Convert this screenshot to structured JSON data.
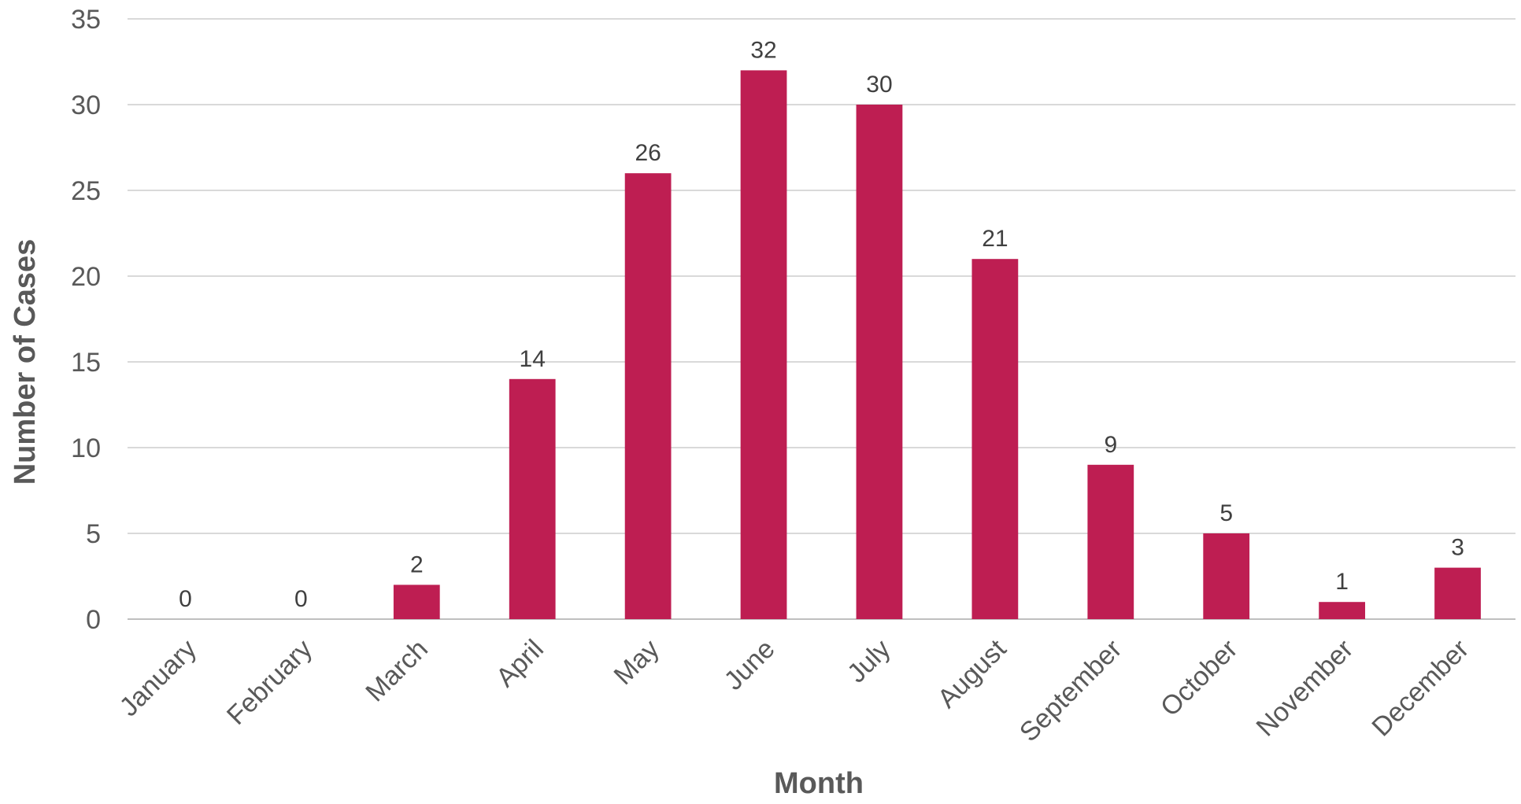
{
  "chart_data": {
    "type": "bar",
    "title": "",
    "xlabel": "Month",
    "ylabel": "Number of Cases",
    "categories": [
      "January",
      "February",
      "March",
      "April",
      "May",
      "June",
      "July",
      "August",
      "September",
      "October",
      "November",
      "December"
    ],
    "values": [
      0,
      0,
      2,
      14,
      26,
      32,
      30,
      21,
      9,
      5,
      1,
      3
    ],
    "data_labels": [
      "0",
      "0",
      "2",
      "14",
      "26",
      "32",
      "30",
      "21",
      "9",
      "5",
      "1",
      "3"
    ],
    "ylim": [
      0,
      35
    ],
    "yticks": [
      "0",
      "5",
      "10",
      "15",
      "20",
      "25",
      "30",
      "35"
    ],
    "grid": true,
    "legend": "none",
    "bar_color": "#be1e52"
  }
}
